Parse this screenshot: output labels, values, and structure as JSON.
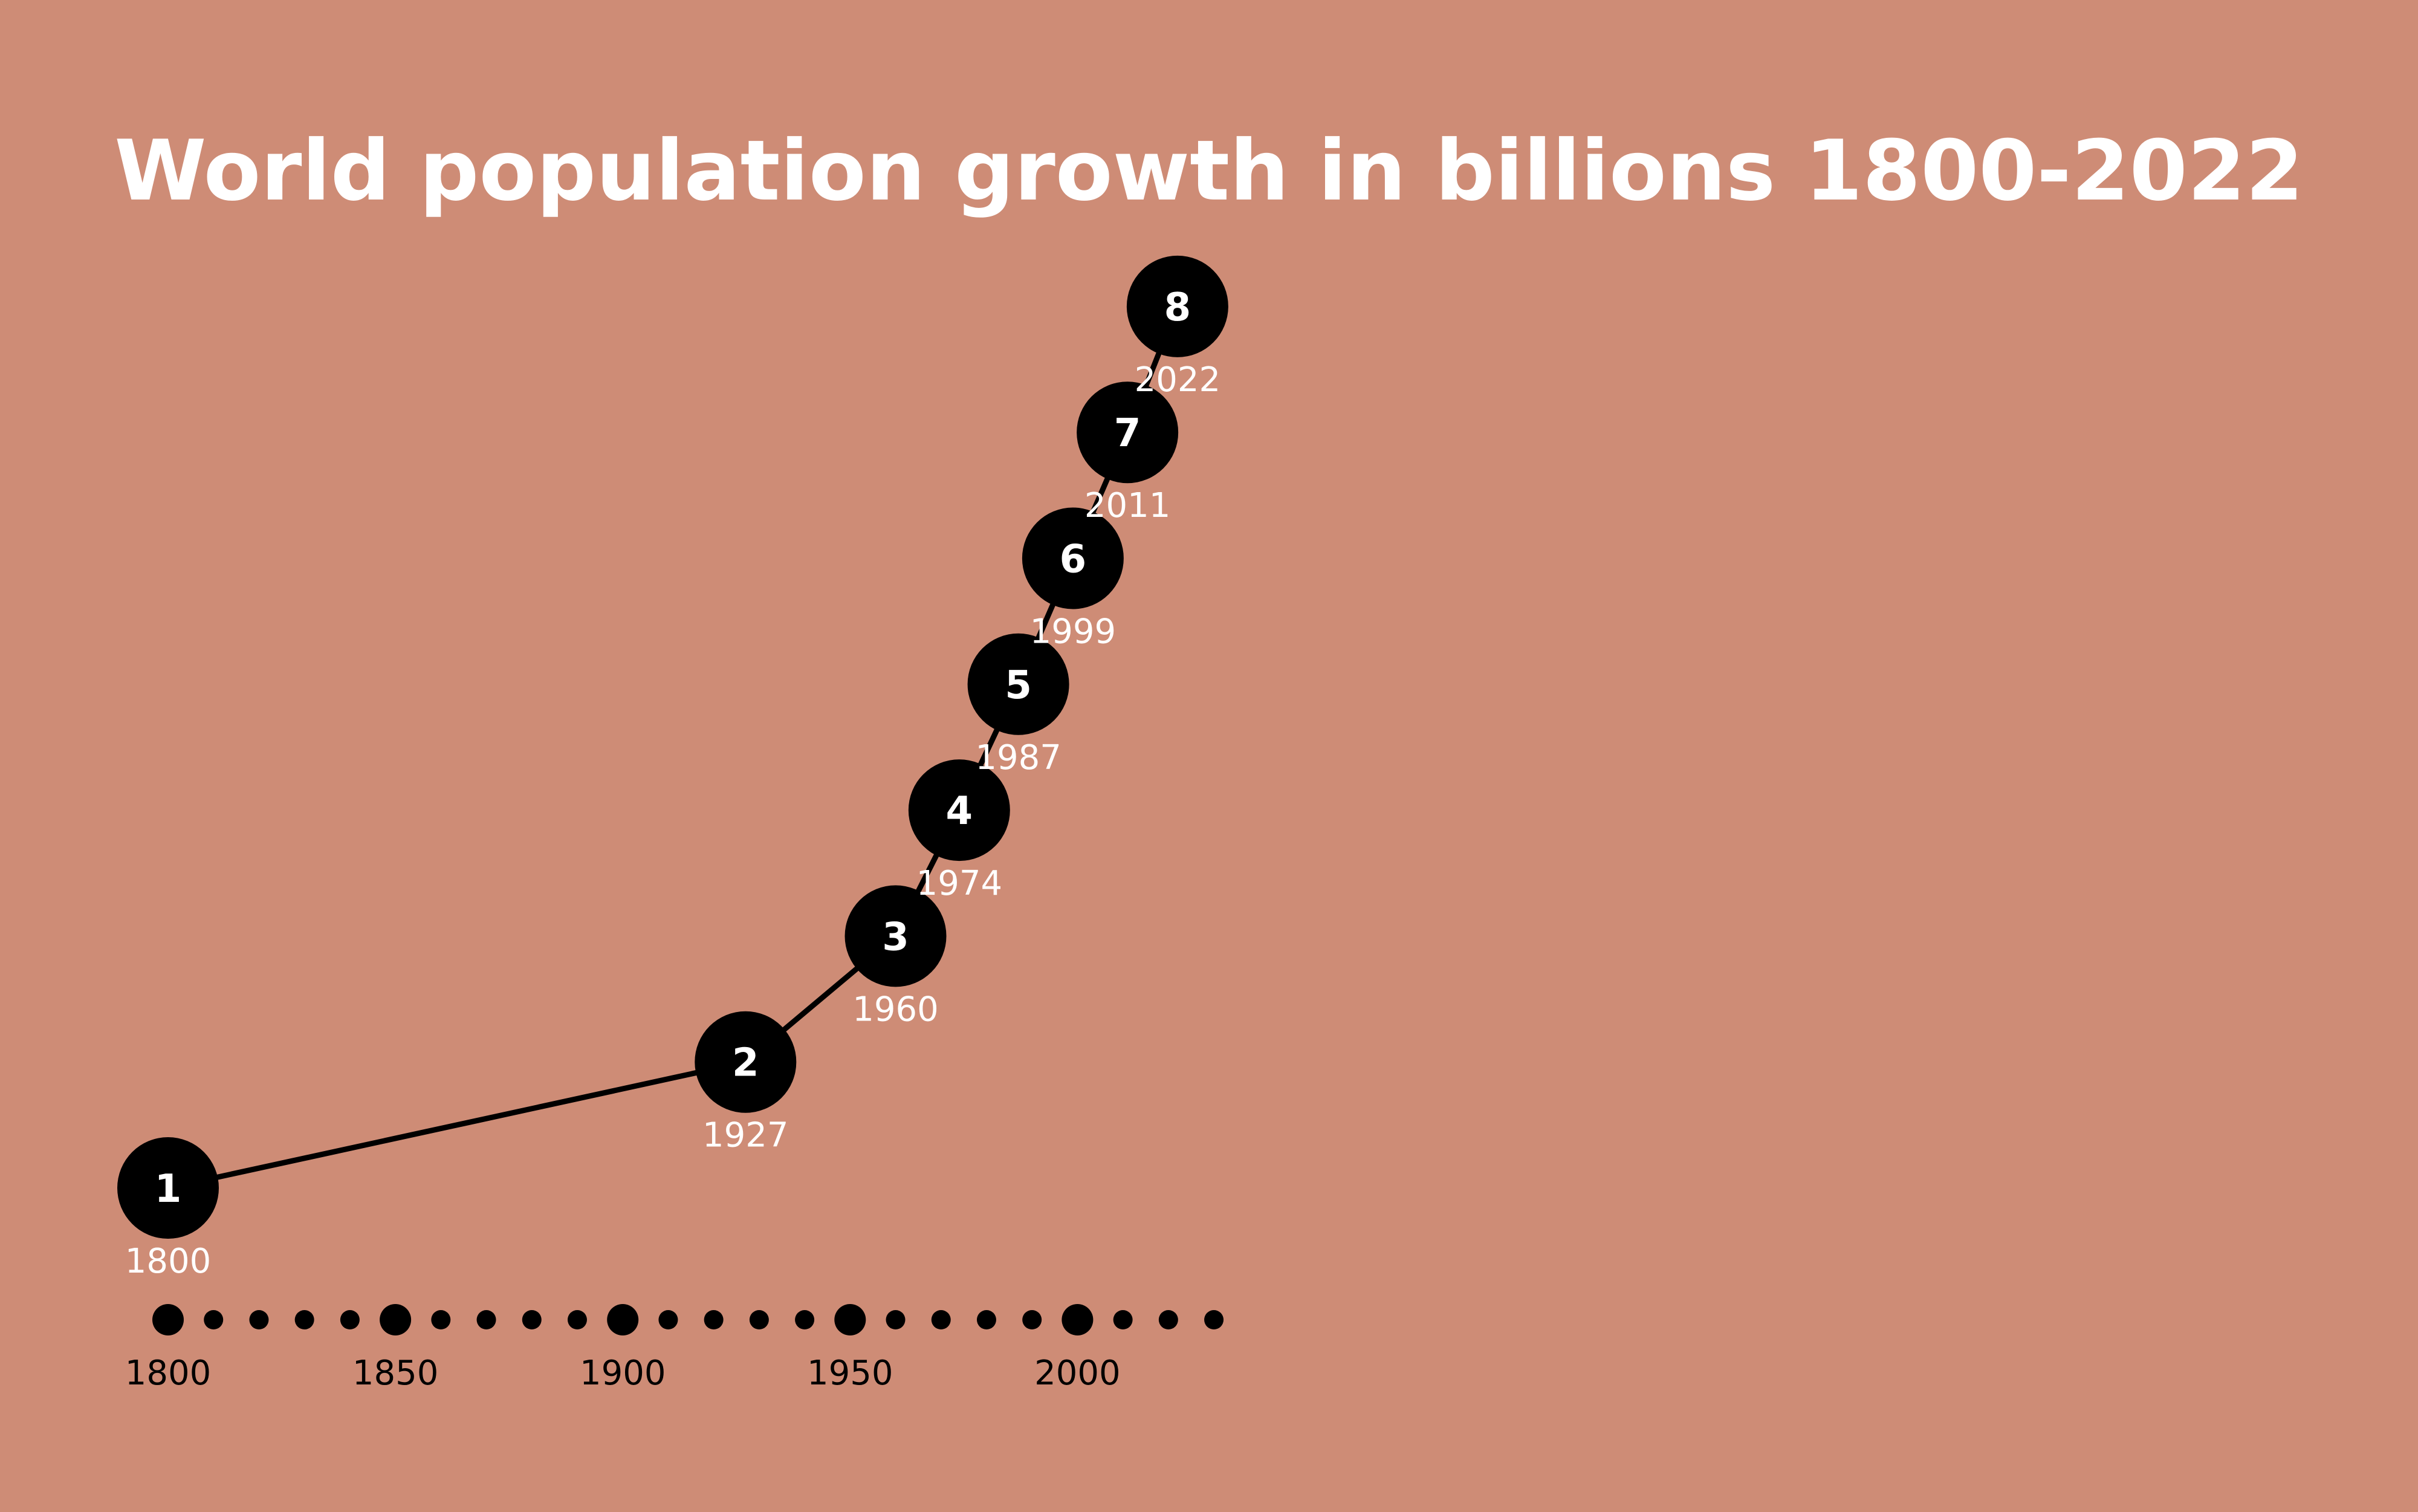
{
  "colors": {
    "background": "#ce8c76",
    "mark": "#000000",
    "text": "#ffffff",
    "axis_text": "#000000"
  },
  "chart_data": {
    "type": "line",
    "title": "World population growth in billions 1800-2022",
    "xlabel": "",
    "ylabel": "",
    "xlim": [
      1800,
      2030
    ],
    "ylim": [
      1,
      8
    ],
    "grid": false,
    "points": [
      {
        "year": 1800,
        "value": 1,
        "value_label": "1",
        "year_label": "1800"
      },
      {
        "year": 1927,
        "value": 2,
        "value_label": "2",
        "year_label": "1927"
      },
      {
        "year": 1960,
        "value": 3,
        "value_label": "3",
        "year_label": "1960"
      },
      {
        "year": 1974,
        "value": 4,
        "value_label": "4",
        "year_label": "1974"
      },
      {
        "year": 1987,
        "value": 5,
        "value_label": "5",
        "year_label": "1987"
      },
      {
        "year": 1999,
        "value": 6,
        "value_label": "6",
        "year_label": "1999"
      },
      {
        "year": 2011,
        "value": 7,
        "value_label": "7",
        "year_label": "2011"
      },
      {
        "year": 2022,
        "value": 8,
        "value_label": "8",
        "year_label": "2022"
      }
    ],
    "x_axis": {
      "dot_start": 1800,
      "dot_end": 2030,
      "minor_step": 10,
      "major_step": 50,
      "tick_labels": [
        "1800",
        "1850",
        "1900",
        "1950",
        "2000"
      ]
    }
  }
}
